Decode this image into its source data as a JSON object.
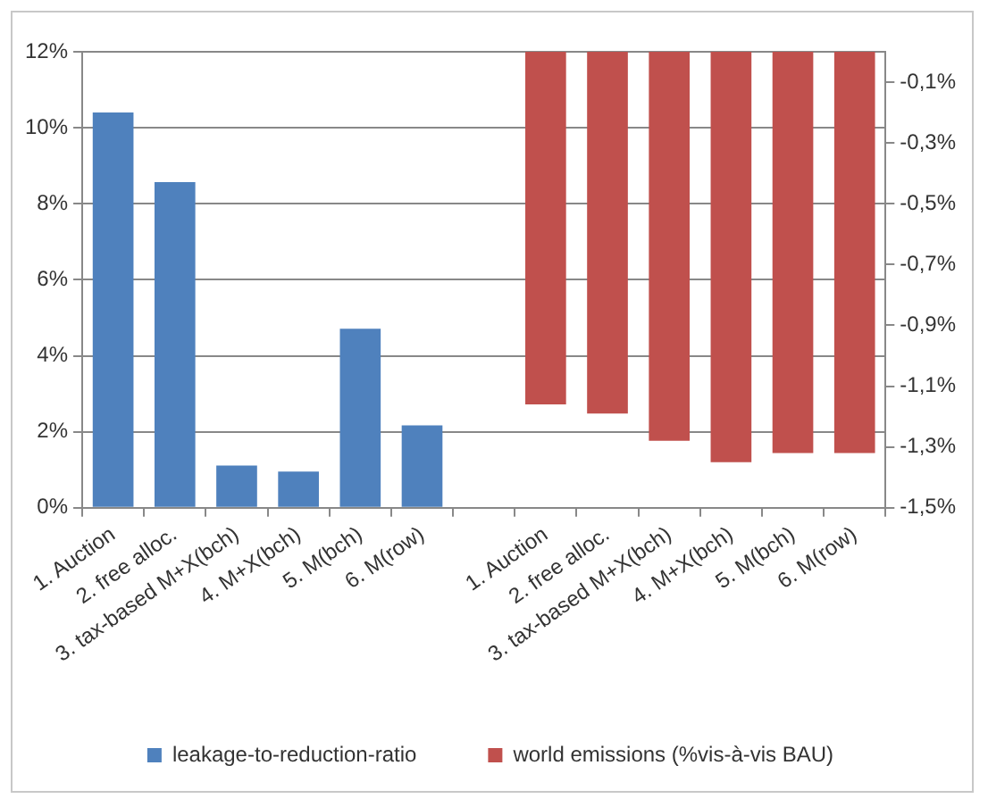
{
  "chart_data": {
    "type": "bar",
    "categories": [
      "1. Auction",
      "2. free alloc.",
      "3. tax-based M+X(bch)",
      "4. M+X(bch)",
      "5. M(bch)",
      "6. M(row)",
      null,
      "1. Auction",
      "2. free alloc.",
      "3. tax-based M+X(bch)",
      "4. M+X(bch)",
      "5. M(bch)",
      "6. M(row)"
    ],
    "series": [
      {
        "name": "leakage-to-reduction-ratio",
        "color": "#4f81bd",
        "values": [
          10.4,
          8.57,
          1.11,
          0.95,
          4.71,
          2.17,
          null,
          null,
          null,
          null,
          null,
          null,
          null
        ]
      },
      {
        "name": "world emissions (%vis-à-vis BAU)",
        "color": "#c0504d",
        "axis": "y2",
        "values": [
          null,
          null,
          null,
          null,
          null,
          null,
          null,
          -1.16,
          -1.19,
          -1.28,
          -1.35,
          -1.32,
          -1.32
        ]
      }
    ],
    "ylim": [
      0,
      12
    ],
    "yticks": [
      {
        "value": 0,
        "label": "0%"
      },
      {
        "value": 2,
        "label": "2%"
      },
      {
        "value": 4,
        "label": "4%"
      },
      {
        "value": 6,
        "label": "6%"
      },
      {
        "value": 8,
        "label": "8%"
      },
      {
        "value": 10,
        "label": "10%"
      },
      {
        "value": 12,
        "label": "12%"
      }
    ],
    "y2lim": [
      -1.5,
      0
    ],
    "y2ticks": [
      {
        "value": -1.5,
        "label": "-1,5%"
      },
      {
        "value": -1.3,
        "label": "-1,3%"
      },
      {
        "value": -1.1,
        "label": "-1,1%"
      },
      {
        "value": -0.9,
        "label": "-0,9%"
      },
      {
        "value": -0.7,
        "label": "-0,7%"
      },
      {
        "value": -0.5,
        "label": "-0,5%"
      },
      {
        "value": -0.3,
        "label": "-0,3%"
      },
      {
        "value": -0.1,
        "label": "-0,1%"
      }
    ],
    "grid": "y",
    "legend": "bottom"
  }
}
